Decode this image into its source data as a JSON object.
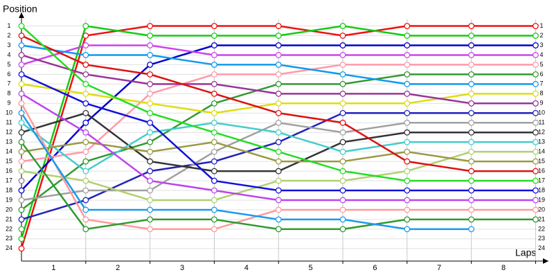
{
  "chart_data": {
    "type": "lap",
    "y_label": "Position",
    "x_label": "Laps",
    "x": [
      0,
      1,
      2,
      3,
      4,
      5,
      6,
      7,
      8
    ],
    "xlim": [
      0,
      8.2
    ],
    "xticks": [
      1,
      2,
      3,
      4,
      5,
      6,
      7,
      8
    ],
    "ylim": [
      25.3,
      -0.4
    ],
    "yticks": [
      1,
      2,
      3,
      4,
      5,
      6,
      7,
      8,
      9,
      10,
      11,
      12,
      13,
      14,
      15,
      16,
      17,
      18,
      19,
      20,
      21,
      22,
      23,
      24
    ],
    "grid": true,
    "series": [
      {
        "color": "#ee1111",
        "values": [
          24,
          2,
          1,
          1,
          1,
          2,
          1,
          1,
          1
        ]
      },
      {
        "color": "#11cc11",
        "values": [
          23,
          1,
          2,
          2,
          2,
          1,
          2,
          2,
          2
        ]
      },
      {
        "color": "#0000cc",
        "values": [
          18,
          11,
          5,
          3,
          3,
          3,
          3,
          3,
          3
        ]
      },
      {
        "color": "#cc44ee",
        "values": [
          5,
          3,
          3,
          4,
          4,
          4,
          4,
          4,
          4
        ]
      },
      {
        "color": "#ff99aa",
        "values": [
          15,
          14,
          8,
          6,
          6,
          5,
          5,
          5,
          5
        ]
      },
      {
        "color": "#339933",
        "values": [
          20,
          15,
          13,
          9,
          7,
          7,
          6,
          6,
          6
        ]
      },
      {
        "color": "#1199ee",
        "values": [
          3,
          4,
          4,
          5,
          5,
          6,
          7,
          7,
          7
        ]
      },
      {
        "color": "#dddd11",
        "values": [
          7,
          8,
          9,
          10,
          9,
          9,
          9,
          8,
          8
        ]
      },
      {
        "color": "#993399",
        "values": [
          4,
          6,
          7,
          7,
          8,
          8,
          8,
          9,
          9
        ]
      },
      {
        "color": "#2222bb",
        "values": [
          21,
          19,
          16,
          15,
          13,
          10,
          10,
          10,
          10
        ]
      },
      {
        "color": "#a0a0a0",
        "values": [
          19,
          18,
          18,
          14,
          11,
          12,
          11,
          11,
          11
        ]
      },
      {
        "color": "#333333",
        "values": [
          12,
          10,
          15,
          16,
          16,
          13,
          12,
          12,
          12
        ]
      },
      {
        "color": "#44cccc",
        "values": [
          11,
          16,
          12,
          11,
          12,
          14,
          13,
          13,
          13
        ]
      },
      {
        "color": "#b0d070",
        "values": [
          16,
          17,
          19,
          19,
          17,
          17,
          16,
          14,
          14
        ]
      },
      {
        "color": "#999944",
        "values": [
          14,
          13,
          14,
          13,
          15,
          15,
          14,
          15,
          15
        ]
      },
      {
        "color": "#dd1111",
        "values": [
          2,
          5,
          6,
          8,
          10,
          11,
          15,
          16,
          16
        ]
      },
      {
        "color": "#22dd22",
        "values": [
          1,
          7,
          10,
          12,
          14,
          16,
          17,
          17,
          17
        ]
      },
      {
        "color": "#1111dd",
        "values": [
          6,
          9,
          11,
          17,
          18,
          18,
          18,
          18,
          18
        ]
      },
      {
        "color": "#bb44ee",
        "values": [
          8,
          12,
          17,
          18,
          19,
          19,
          19,
          19,
          19
        ]
      },
      {
        "color": "#ff9999",
        "values": [
          9,
          21,
          22,
          22,
          20,
          20,
          20,
          20,
          20
        ]
      },
      {
        "color": "#2f9a2f",
        "values": [
          13,
          22,
          21,
          21,
          22,
          22,
          21,
          21,
          21
        ]
      },
      {
        "color": "#1a99ee",
        "values": [
          10,
          20,
          20,
          20,
          21,
          21,
          22,
          22,
          null
        ]
      },
      {
        "color": "#888888",
        "values": [
          17,
          null,
          null,
          null,
          null,
          null,
          null,
          null,
          null
        ]
      },
      {
        "color": "#44aa44",
        "values": [
          22,
          null,
          null,
          null,
          null,
          null,
          null,
          null,
          null
        ]
      }
    ]
  }
}
